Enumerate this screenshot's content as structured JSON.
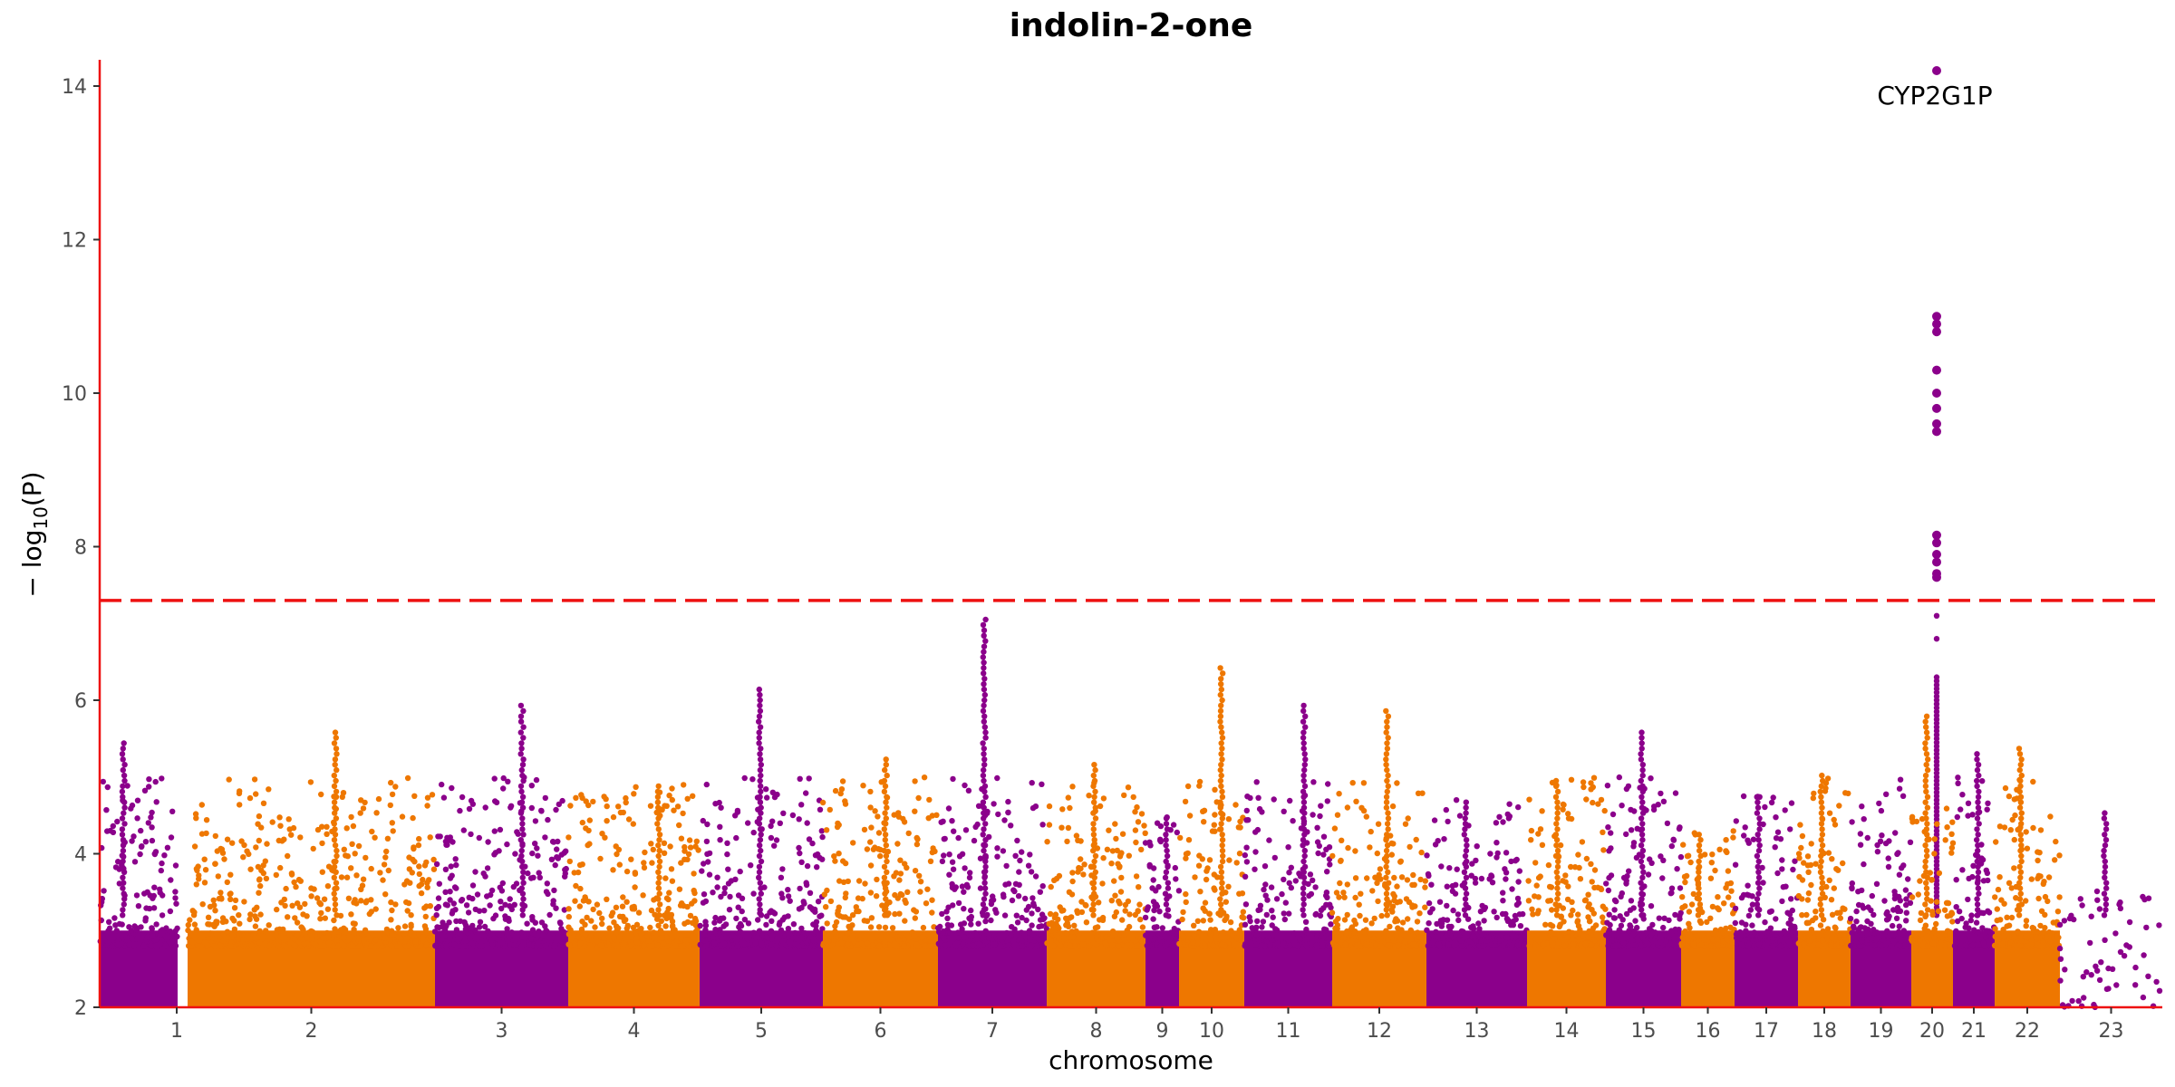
{
  "chart_data": {
    "type": "scatter",
    "title": "indolin-2-one",
    "xlabel": "chromosome",
    "ylabel": "− log10(P)",
    "ylim": [
      2,
      14.3
    ],
    "yticks": [
      2,
      4,
      6,
      8,
      10,
      12,
      14
    ],
    "threshold": 7.3,
    "threshold_color": "#ee1111",
    "colors": [
      "#8b008b",
      "#ee7700"
    ],
    "chromosomes": [
      "1",
      "2",
      "3",
      "4",
      "5",
      "6",
      "7",
      "8",
      "9",
      "10",
      "11",
      "12",
      "13",
      "14",
      "15",
      "16",
      "17",
      "18",
      "19",
      "20",
      "21",
      "22",
      "23"
    ],
    "peaks": [
      {
        "chr": "1",
        "top": 5.5
      },
      {
        "chr": "2",
        "top": 5.6
      },
      {
        "chr": "3",
        "top": 6.0
      },
      {
        "chr": "4",
        "top": 4.9
      },
      {
        "chr": "5",
        "top": 6.2
      },
      {
        "chr": "6",
        "top": 5.3
      },
      {
        "chr": "7",
        "top": 7.1
      },
      {
        "chr": "8",
        "top": 5.2
      },
      {
        "chr": "9",
        "top": 4.5
      },
      {
        "chr": "10",
        "top": 6.45
      },
      {
        "chr": "11",
        "top": 6.0
      },
      {
        "chr": "12",
        "top": 5.9
      },
      {
        "chr": "13",
        "top": 4.7
      },
      {
        "chr": "14",
        "top": 5.0
      },
      {
        "chr": "15",
        "top": 5.65
      },
      {
        "chr": "16",
        "top": 4.3
      },
      {
        "chr": "17",
        "top": 4.8
      },
      {
        "chr": "18",
        "top": 5.05
      },
      {
        "chr": "19",
        "top": 14.2
      },
      {
        "chr": "20",
        "top": 5.85
      },
      {
        "chr": "21",
        "top": 5.35
      },
      {
        "chr": "22",
        "top": 5.4
      },
      {
        "chr": "23",
        "top": 4.55
      }
    ],
    "significant_points": [
      {
        "chr": "19",
        "y": 14.2
      },
      {
        "chr": "19",
        "y": 11.0
      },
      {
        "chr": "19",
        "y": 10.9
      },
      {
        "chr": "19",
        "y": 10.8
      },
      {
        "chr": "19",
        "y": 10.3
      },
      {
        "chr": "19",
        "y": 10.0
      },
      {
        "chr": "19",
        "y": 9.8
      },
      {
        "chr": "19",
        "y": 9.6
      },
      {
        "chr": "19",
        "y": 9.5
      },
      {
        "chr": "19",
        "y": 8.15
      },
      {
        "chr": "19",
        "y": 8.05
      },
      {
        "chr": "19",
        "y": 7.9
      },
      {
        "chr": "19",
        "y": 7.8
      },
      {
        "chr": "19",
        "y": 7.65
      },
      {
        "chr": "19",
        "y": 7.6
      }
    ],
    "annotations": [
      {
        "text": "CYP2G1P",
        "chr": "19",
        "y": 14.2
      }
    ],
    "grid": false,
    "legend": "none"
  }
}
